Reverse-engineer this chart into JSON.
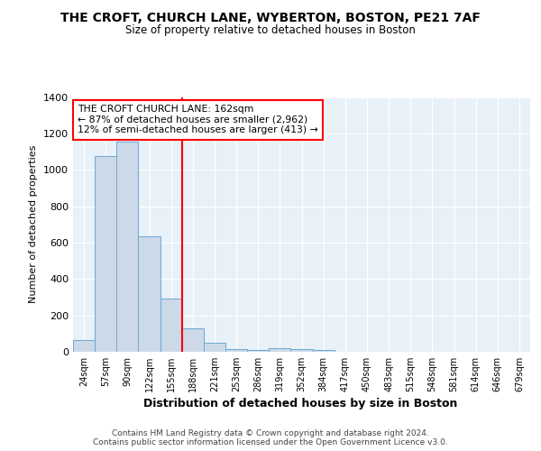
{
  "title": "THE CROFT, CHURCH LANE, WYBERTON, BOSTON, PE21 7AF",
  "subtitle": "Size of property relative to detached houses in Boston",
  "xlabel": "Distribution of detached houses by size in Boston",
  "ylabel": "Number of detached properties",
  "categories": [
    "24sqm",
    "57sqm",
    "90sqm",
    "122sqm",
    "155sqm",
    "188sqm",
    "221sqm",
    "253sqm",
    "286sqm",
    "319sqm",
    "352sqm",
    "384sqm",
    "417sqm",
    "450sqm",
    "483sqm",
    "515sqm",
    "548sqm",
    "581sqm",
    "614sqm",
    "646sqm",
    "679sqm"
  ],
  "values": [
    65,
    1075,
    1155,
    635,
    290,
    130,
    50,
    15,
    10,
    20,
    15,
    10,
    0,
    0,
    0,
    0,
    0,
    0,
    0,
    0,
    0
  ],
  "bar_color": "#ccd9e8",
  "bar_edge_color": "#6aaad4",
  "vline_x": 4.5,
  "vline_color": "red",
  "annotation_text": "THE CROFT CHURCH LANE: 162sqm\n← 87% of detached houses are smaller (2,962)\n12% of semi-detached houses are larger (413) →",
  "annotation_box_color": "white",
  "annotation_box_edge": "red",
  "ylim": [
    0,
    1400
  ],
  "yticks": [
    0,
    200,
    400,
    600,
    800,
    1000,
    1200,
    1400
  ],
  "footer": "Contains HM Land Registry data © Crown copyright and database right 2024.\nContains public sector information licensed under the Open Government Licence v3.0.",
  "fig_bg_color": "#ffffff",
  "plot_bg_color": "#e8f0f8"
}
